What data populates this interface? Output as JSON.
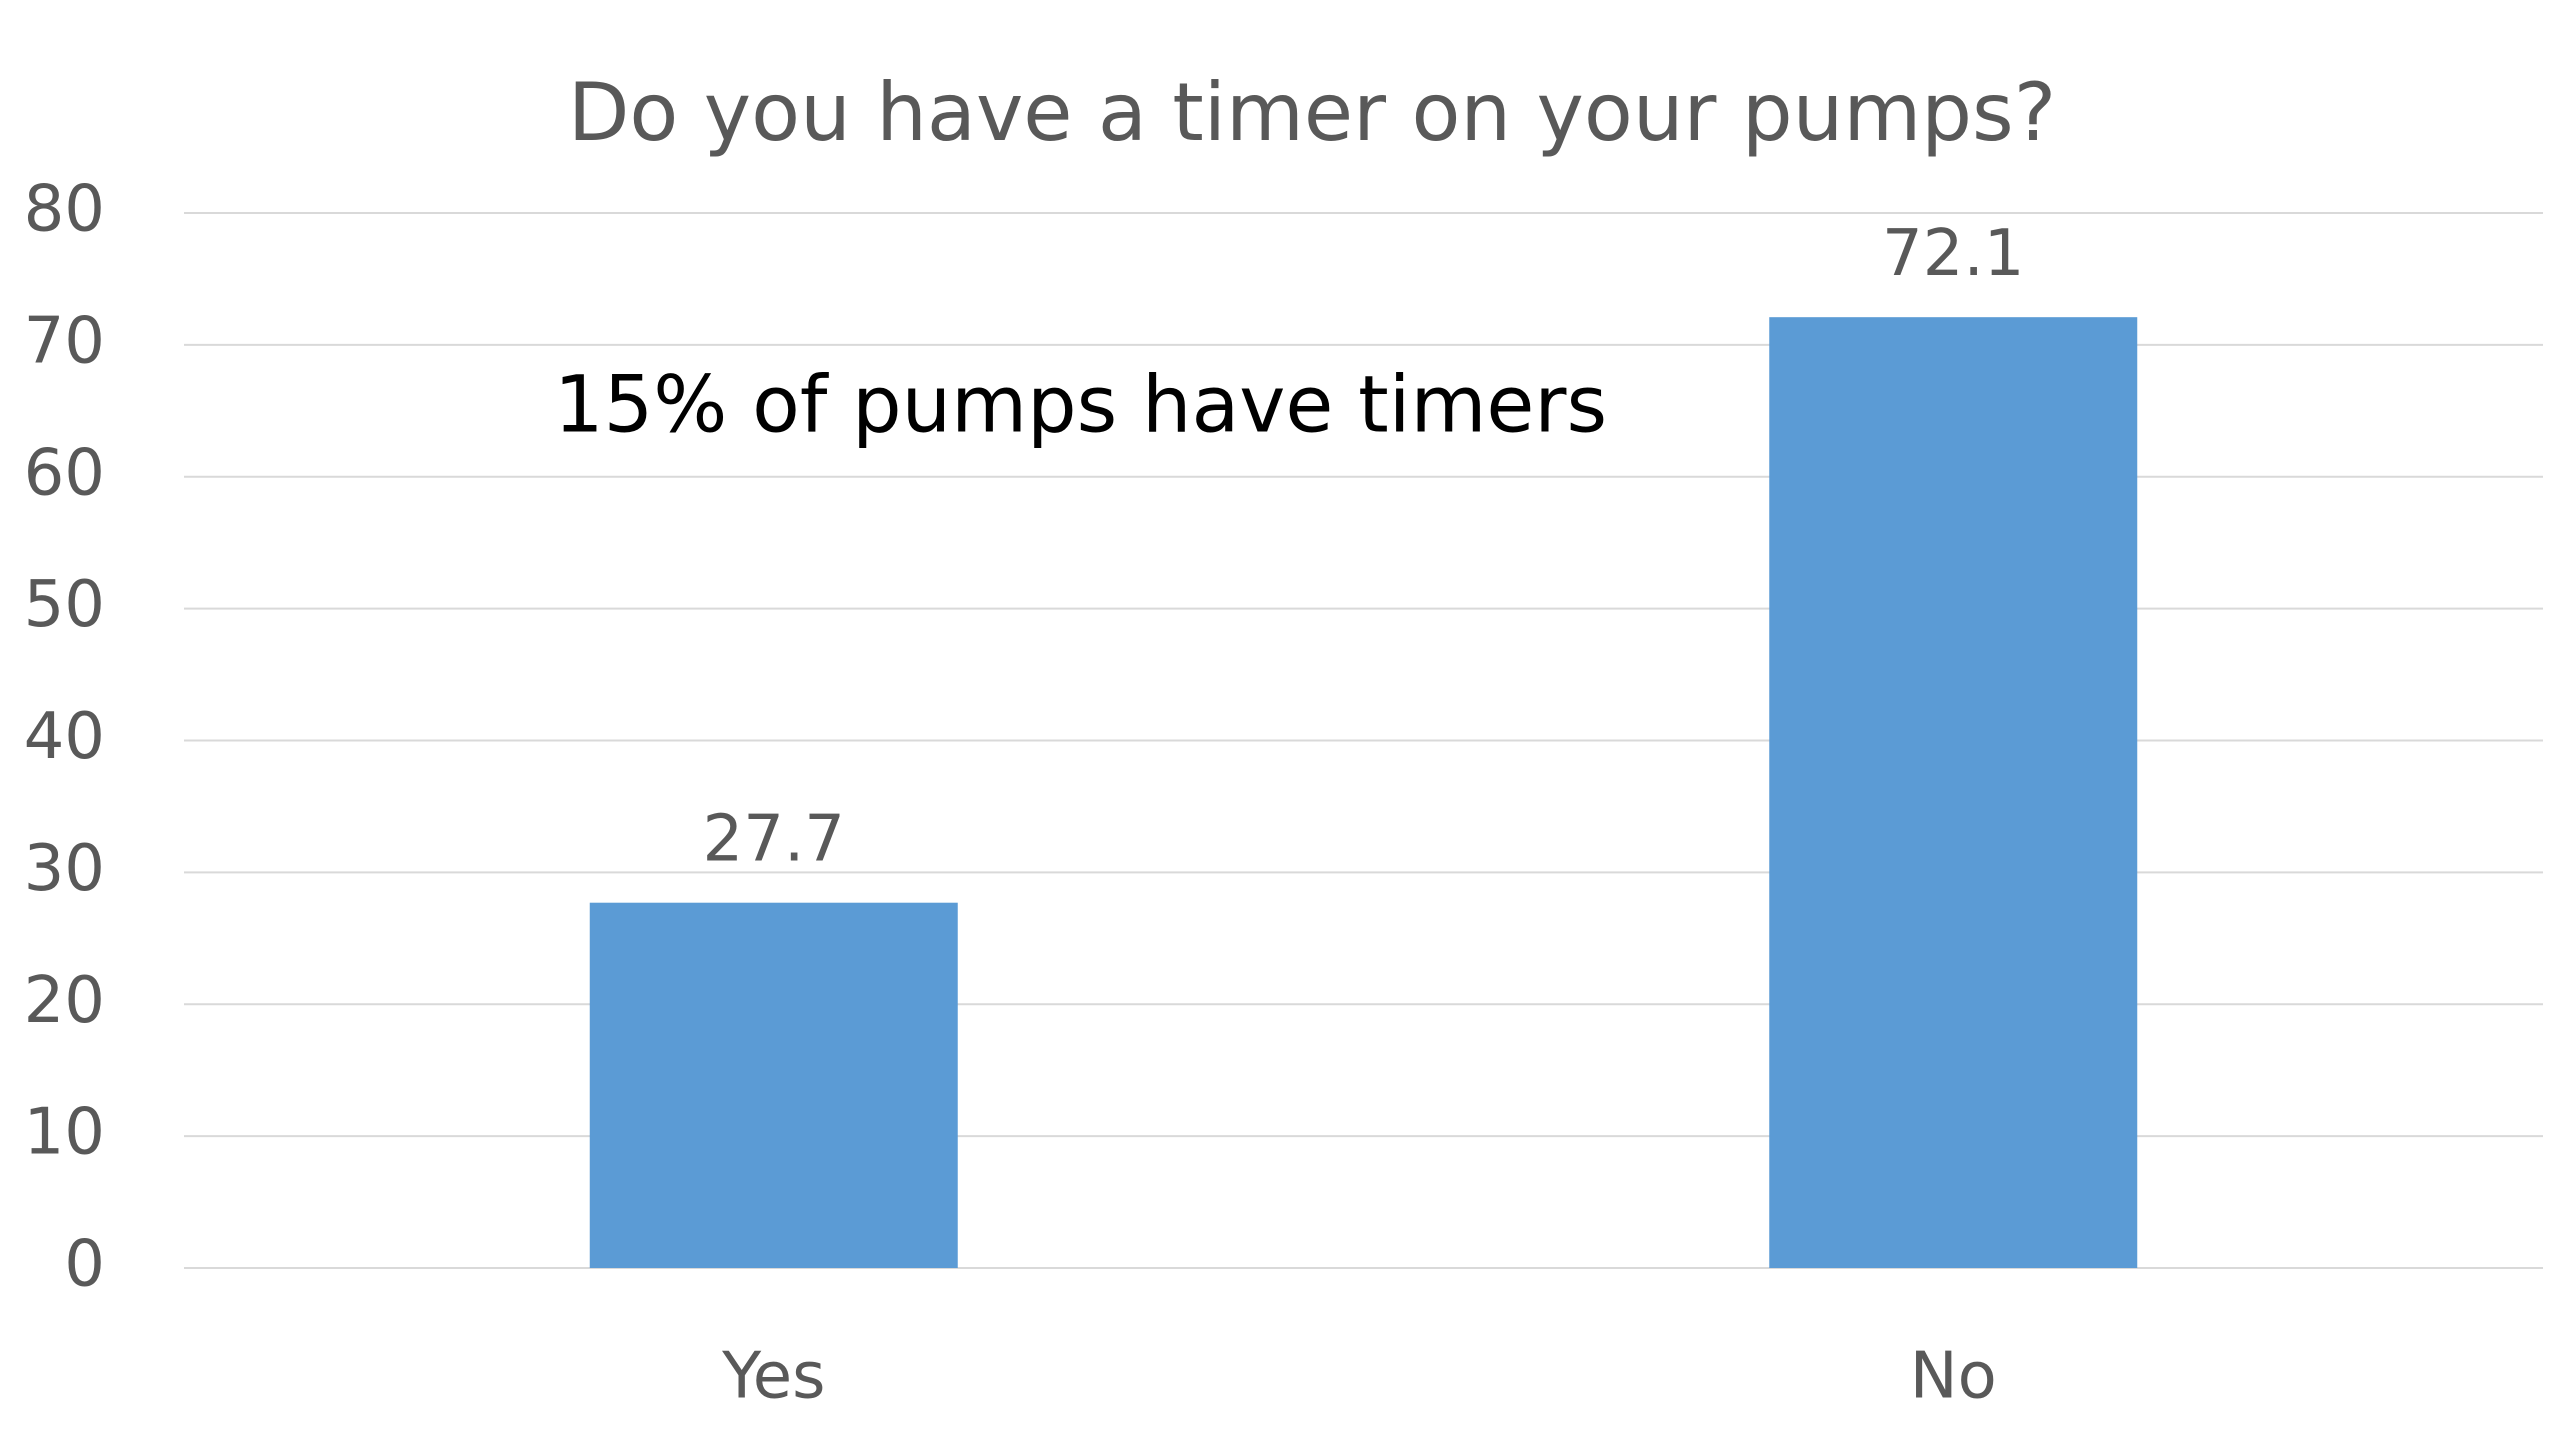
{
  "chart_data": {
    "type": "bar",
    "title": "Do you have a timer on your pumps?",
    "annotation": "15% of pumps have timers",
    "categories": [
      "Yes",
      "No"
    ],
    "values": [
      27.7,
      72.1
    ],
    "color": "#5b9bd5",
    "ylim": [
      0,
      80
    ],
    "yticks": [
      0,
      10,
      20,
      30,
      40,
      50,
      60,
      70,
      80
    ],
    "grid": true
  }
}
